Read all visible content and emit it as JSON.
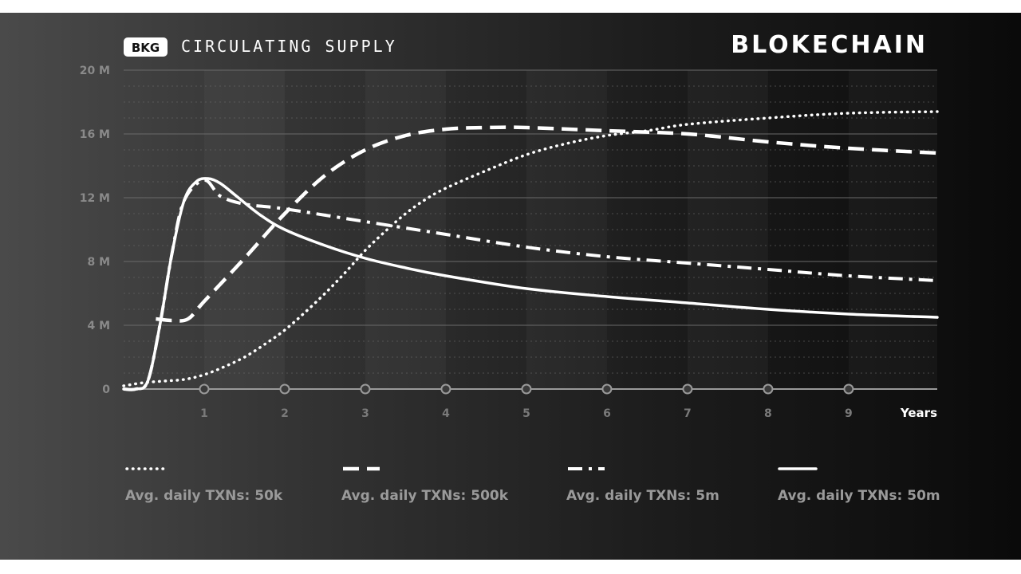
{
  "header": {
    "badge": "BKG",
    "title": "CIRCULATING SUPPLY",
    "brand": "BLOKECHAIN"
  },
  "colors": {
    "line": "#ffffff",
    "grid": "#6a6a6a",
    "tick_label": "#8a8a8a",
    "legend_label": "#9a9a9a"
  },
  "chart_data": {
    "type": "line",
    "title": "CIRCULATING SUPPLY",
    "xlabel": "Years",
    "ylabel": "",
    "xlim": [
      0,
      10.1
    ],
    "ylim": [
      0,
      20
    ],
    "x_ticks": [
      1,
      2,
      3,
      4,
      5,
      6,
      7,
      8,
      9
    ],
    "y_ticks": [
      0,
      4,
      8,
      12,
      16,
      20
    ],
    "y_tick_labels": [
      "0",
      "4 M",
      "8 M",
      "12 M",
      "16 M",
      "20 M"
    ],
    "grid": true,
    "legend_position": "bottom",
    "series": [
      {
        "name": "Avg. daily TXNs: 50k",
        "style": "dotted",
        "x": [
          0,
          0.25,
          0.5,
          0.75,
          1,
          1.25,
          1.5,
          1.75,
          2,
          2.25,
          2.5,
          2.75,
          3,
          3.25,
          3.5,
          3.75,
          4,
          4.5,
          5,
          5.5,
          6,
          6.5,
          7,
          8,
          9,
          10.1
        ],
        "y": [
          0.2,
          0.4,
          0.5,
          0.6,
          0.9,
          1.4,
          2.0,
          2.8,
          3.7,
          4.8,
          6.0,
          7.3,
          8.7,
          9.9,
          11.0,
          11.9,
          12.6,
          13.7,
          14.7,
          15.4,
          15.9,
          16.2,
          16.6,
          17.0,
          17.3,
          17.4
        ]
      },
      {
        "name": "Avg. daily TXNs: 500k",
        "style": "dashed",
        "x": [
          0.4,
          0.6,
          0.8,
          1,
          1.5,
          2,
          2.5,
          3,
          3.5,
          4,
          4.5,
          5,
          6,
          7,
          8,
          9,
          10.1
        ],
        "y": [
          4.4,
          4.3,
          4.4,
          5.5,
          8.2,
          11.0,
          13.4,
          15.0,
          15.9,
          16.3,
          16.4,
          16.4,
          16.2,
          16.0,
          15.5,
          15.1,
          14.8
        ]
      },
      {
        "name": "Avg. daily TXNs: 5m",
        "style": "dash-dot",
        "x": [
          0,
          0.15,
          0.3,
          0.45,
          0.6,
          0.75,
          1.0,
          1.2,
          1.5,
          2,
          3,
          4,
          5,
          6,
          7,
          8,
          9,
          10.1
        ],
        "y": [
          0,
          0,
          0.5,
          4.0,
          8.5,
          11.8,
          13.1,
          12.1,
          11.6,
          11.3,
          10.5,
          9.7,
          8.9,
          8.3,
          7.9,
          7.5,
          7.1,
          6.8
        ]
      },
      {
        "name": "Avg. daily TXNs: 50m",
        "style": "solid",
        "x": [
          0,
          0.15,
          0.3,
          0.45,
          0.6,
          0.75,
          0.9,
          1.05,
          1.2,
          1.4,
          1.7,
          2,
          2.5,
          3,
          3.5,
          4,
          5,
          6,
          7,
          8,
          9,
          10.1
        ],
        "y": [
          0,
          0,
          0.5,
          4.0,
          8.5,
          11.8,
          13.0,
          13.2,
          12.9,
          12.1,
          10.9,
          10.0,
          9.0,
          8.2,
          7.6,
          7.1,
          6.3,
          5.8,
          5.4,
          5.0,
          4.7,
          4.5
        ]
      }
    ]
  }
}
